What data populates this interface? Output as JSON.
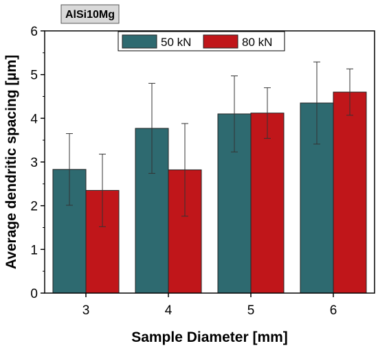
{
  "chart_data": {
    "type": "bar",
    "title": "AlSi10Mg",
    "xlabel": "Sample Diameter [mm]",
    "ylabel": "Average dendritic spacing [µm]",
    "categories": [
      "3",
      "4",
      "5",
      "6"
    ],
    "ylim": [
      0,
      6
    ],
    "yticks": [
      "0",
      "1",
      "2",
      "3",
      "4",
      "5",
      "6"
    ],
    "grid": false,
    "legend_position": "top-center",
    "series": [
      {
        "name": "50 kN",
        "color": "#2e6a70",
        "values": [
          2.83,
          3.77,
          4.1,
          4.35
        ],
        "errors": [
          0.82,
          1.03,
          0.87,
          0.94
        ]
      },
      {
        "name": "80 kN",
        "color": "#c0161a",
        "values": [
          2.35,
          2.82,
          4.12,
          4.6
        ],
        "errors": [
          0.83,
          1.06,
          0.58,
          0.53
        ]
      }
    ]
  }
}
